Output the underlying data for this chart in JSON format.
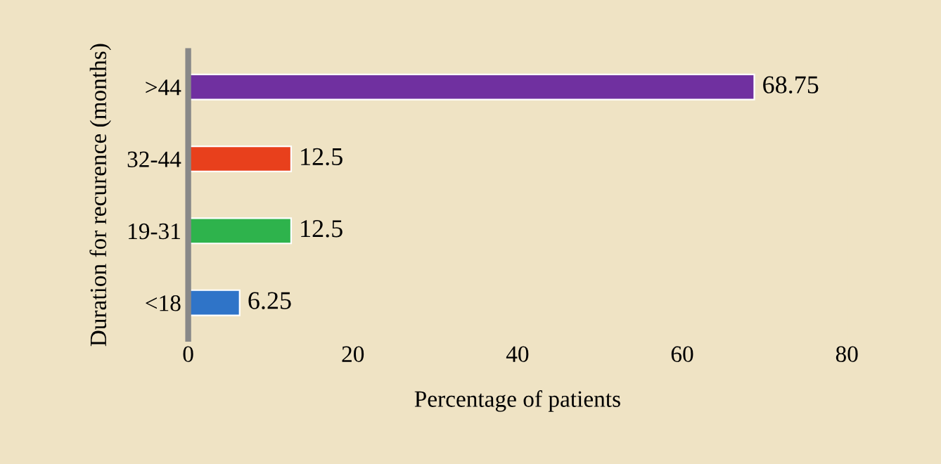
{
  "chart_data": {
    "type": "bar",
    "orientation": "horizontal",
    "categories": [
      ">44",
      "32-44",
      "19-31",
      "<18"
    ],
    "values": [
      68.75,
      12.5,
      12.5,
      6.25
    ],
    "colors": [
      "#7030a0",
      "#e8401c",
      "#2eb34c",
      "#2f74c8"
    ],
    "xlabel": "Percentage of patients",
    "ylabel": "Duration for recurence (months)",
    "xlim": [
      0,
      80
    ],
    "xticks": [
      0,
      20,
      40,
      60,
      80
    ],
    "data_labels": true,
    "grid": false
  }
}
